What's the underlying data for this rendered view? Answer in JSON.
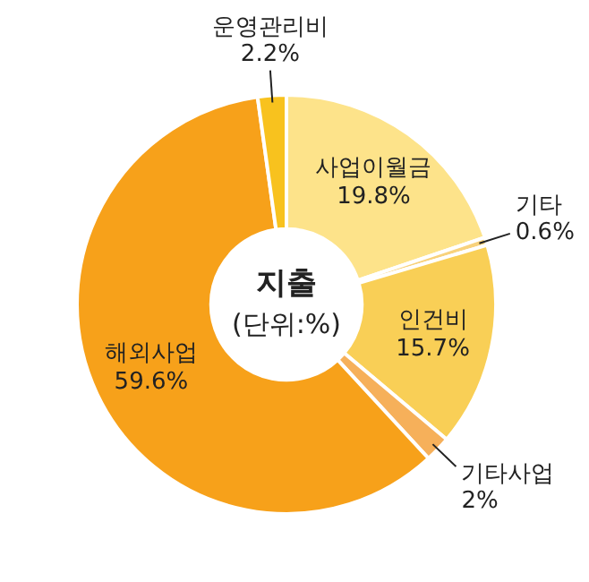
{
  "chart_data": {
    "type": "donut",
    "title": "지출",
    "subtitle": "(단위:%)",
    "categories": [
      "사업이월금",
      "기타",
      "인건비",
      "기타사업",
      "해외사업",
      "운영관리비"
    ],
    "values": [
      19.8,
      0.6,
      15.7,
      2,
      59.6,
      2.2
    ],
    "value_labels": [
      "19.8%",
      "0.6%",
      "15.7%",
      "2%",
      "59.6%",
      "2.2%"
    ],
    "colors": [
      "#fde38a",
      "#f8d27c",
      "#f9cf56",
      "#f6b05a",
      "#f7a11a",
      "#f8c21e"
    ],
    "legend": false
  }
}
